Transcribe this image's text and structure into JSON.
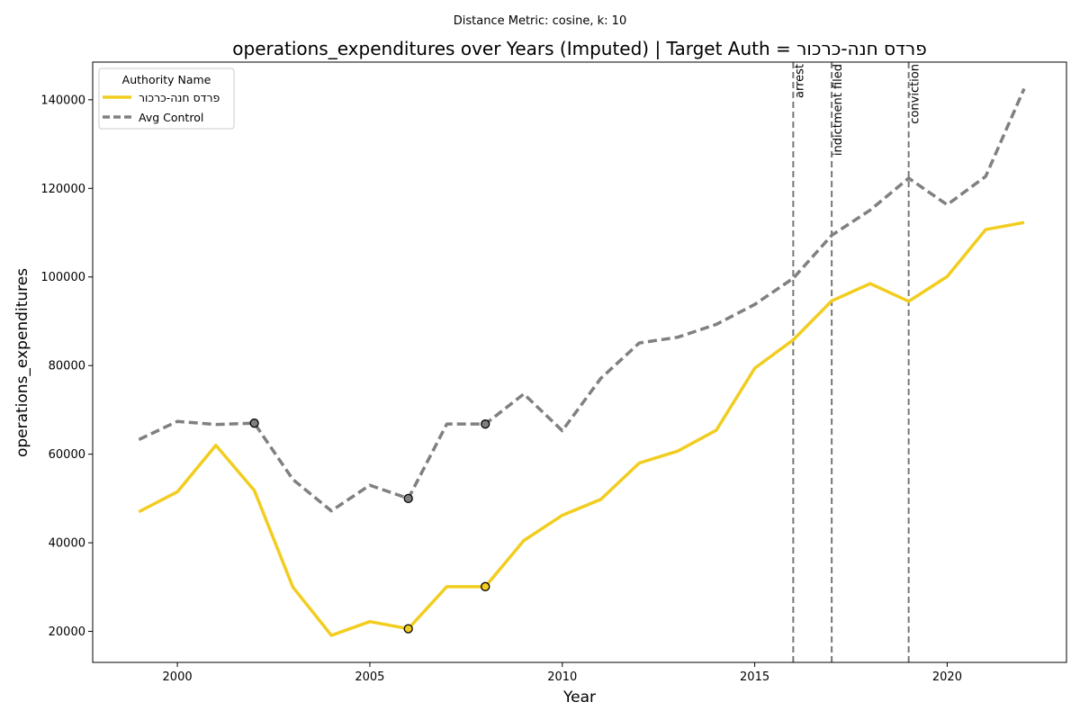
{
  "suptitle": "Distance Metric: cosine, k: 10",
  "chart_data": {
    "type": "line",
    "title": "operations_expenditures over Years (Imputed) | Target Auth = פרדס חנה-כרכור",
    "xlabel": "Year",
    "ylabel": "operations_expenditures",
    "xlim": [
      1997.8,
      2023.1
    ],
    "ylim": [
      13000,
      148500
    ],
    "xticks": [
      2000,
      2005,
      2010,
      2015,
      2020
    ],
    "yticks": [
      20000,
      40000,
      60000,
      80000,
      100000,
      120000,
      140000
    ],
    "grid": false,
    "legend": {
      "title": "Authority Name",
      "placement": "top-left"
    },
    "x": [
      1999,
      2000,
      2001,
      2002,
      2003,
      2004,
      2005,
      2006,
      2007,
      2008,
      2009,
      2010,
      2011,
      2012,
      2013,
      2014,
      2015,
      2016,
      2017,
      2018,
      2019,
      2020,
      2021,
      2022
    ],
    "series": [
      {
        "name": "פרדס חנה-כרכור",
        "color": "#f2cd1f",
        "style": "solid",
        "values": [
          47000,
          51500,
          62000,
          51800,
          30000,
          19100,
          22200,
          20600,
          30100,
          30100,
          40500,
          46200,
          49800,
          58000,
          60700,
          65400,
          79400,
          85800,
          94600,
          98500,
          94500,
          100100,
          110700,
          112300
        ],
        "imputed_x": [
          2006,
          2008
        ]
      },
      {
        "name": "Avg Control",
        "color": "#808080",
        "style": "dashed",
        "values": [
          63300,
          67400,
          66700,
          67000,
          54300,
          47200,
          53000,
          50000,
          66800,
          66800,
          73600,
          65300,
          77100,
          85100,
          86400,
          89300,
          93800,
          99700,
          109400,
          115100,
          122300,
          116300,
          122700,
          142500
        ],
        "imputed_x": [
          2002,
          2006,
          2008
        ]
      }
    ],
    "events": [
      {
        "x": 2016,
        "label": "arrest"
      },
      {
        "x": 2017,
        "label": "indictment filed"
      },
      {
        "x": 2019,
        "label": "conviction"
      }
    ]
  }
}
